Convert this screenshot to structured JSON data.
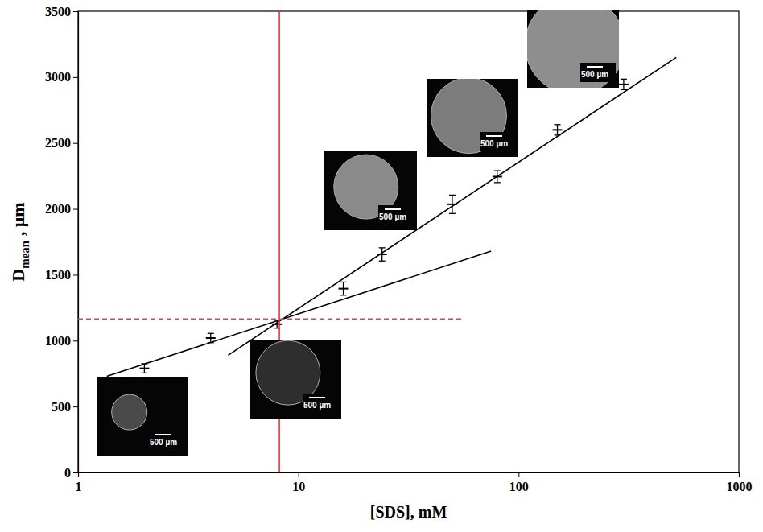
{
  "chart_data": {
    "type": "scatter",
    "x_label": "[SDS], mM",
    "y_label": {
      "text": "D",
      "subscript": "mean",
      "suffix": " , µm"
    },
    "log": "x",
    "grid": false,
    "xlim": [
      1,
      1000
    ],
    "xticks": [
      1,
      10,
      100,
      1000
    ],
    "ylim": [
      0,
      3500
    ],
    "yticks": [
      0,
      500,
      1000,
      1500,
      2000,
      2500,
      3000,
      3500
    ],
    "series": [
      {
        "type": "scatter",
        "marker": "dash",
        "color": "#000000",
        "x": [
          2,
          4,
          8,
          16,
          24,
          50,
          80,
          150,
          300
        ],
        "values": [
          790,
          1020,
          1125,
          1395,
          1655,
          2035,
          2245,
          2600,
          2945
        ],
        "errors": [
          35,
          35,
          30,
          50,
          50,
          70,
          45,
          40,
          40
        ]
      },
      {
        "type": "line",
        "line_style": "solid",
        "color": "#000000",
        "x": [
          1.35,
          75
        ],
        "values": [
          730,
          1680
        ]
      },
      {
        "type": "line",
        "line_style": "solid",
        "color": "#000000",
        "x": [
          4.8,
          520
        ],
        "values": [
          890,
          3150
        ]
      },
      {
        "type": "line",
        "line_style": "solid",
        "color": "#e8262b",
        "x": [
          8.2,
          8.2
        ],
        "values": [
          0,
          3500
        ]
      },
      {
        "type": "line",
        "line_style": "dashed",
        "color": "#c0504d",
        "x": [
          1,
          55
        ],
        "values": [
          1165,
          1165
        ]
      }
    ],
    "insets": [
      {
        "label": "500 µm"
      },
      {
        "label": "500 µm"
      },
      {
        "label": "500 µm"
      },
      {
        "label": "500 µm"
      },
      {
        "label": "500 µm"
      }
    ]
  }
}
